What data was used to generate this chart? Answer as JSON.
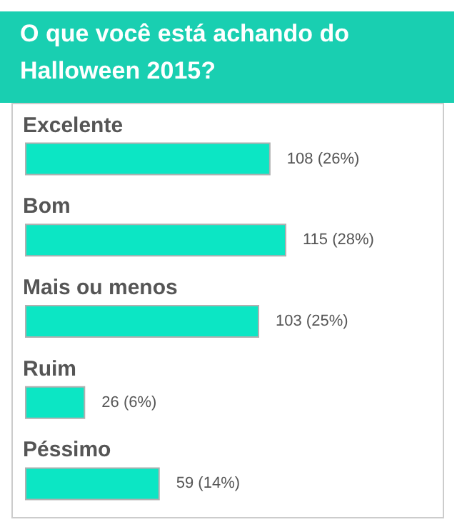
{
  "chart_data": {
    "type": "bar",
    "orientation": "horizontal",
    "title": "O que você está achando do Halloween 2015?",
    "categories": [
      "Excelente",
      "Bom",
      "Mais ou menos",
      "Ruim",
      "Péssimo"
    ],
    "values": [
      108,
      115,
      103,
      26,
      59
    ],
    "value_labels": [
      "108 (26%)",
      "115 (28%)",
      "103 (25%)",
      "26 (6%)",
      "59 (14%)"
    ],
    "color": "#0ce6c4",
    "grid": false
  }
}
